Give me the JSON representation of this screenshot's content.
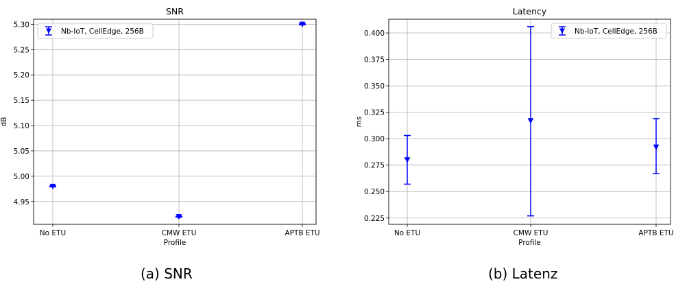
{
  "chart_data": [
    {
      "type": "scatter",
      "title": "SNR",
      "xlabel": "Profile",
      "ylabel": "dB",
      "categories": [
        "No ETU",
        "CMW ETU",
        "APTB ETU"
      ],
      "ylim": [
        4.905,
        5.31
      ],
      "yticks": [
        4.95,
        5.0,
        5.05,
        5.1,
        5.15,
        5.2,
        5.25,
        5.3
      ],
      "ytick_labels": [
        "4.95",
        "5.00",
        "5.05",
        "5.10",
        "5.15",
        "5.20",
        "5.25",
        "5.30"
      ],
      "grid": true,
      "legend_position": "top-left",
      "series": [
        {
          "name": "Nb-IoT, CellEdge, 256B",
          "color": "#0000ff",
          "marker": "triangle-down",
          "values": [
            4.98,
            4.92,
            5.3
          ],
          "err_low": [
            4.979,
            4.919,
            5.299
          ],
          "err_high": [
            4.981,
            4.921,
            5.301
          ]
        }
      ],
      "caption": "(a) SNR"
    },
    {
      "type": "scatter",
      "title": "Latency",
      "xlabel": "Profile",
      "ylabel": "ms",
      "categories": [
        "No ETU",
        "CMW ETU",
        "APTB ETU"
      ],
      "ylim": [
        0.219,
        0.413
      ],
      "yticks": [
        0.225,
        0.25,
        0.275,
        0.3,
        0.325,
        0.35,
        0.375,
        0.4
      ],
      "ytick_labels": [
        "0.225",
        "0.250",
        "0.275",
        "0.300",
        "0.325",
        "0.350",
        "0.375",
        "0.400"
      ],
      "grid": true,
      "legend_position": "top-right",
      "series": [
        {
          "name": "Nb-IoT, CellEdge, 256B",
          "color": "#0000ff",
          "marker": "triangle-down",
          "values": [
            0.28,
            0.317,
            0.292
          ],
          "err_low": [
            0.257,
            0.227,
            0.267
          ],
          "err_high": [
            0.303,
            0.406,
            0.319
          ]
        }
      ],
      "caption": "(b) Latenz"
    }
  ]
}
